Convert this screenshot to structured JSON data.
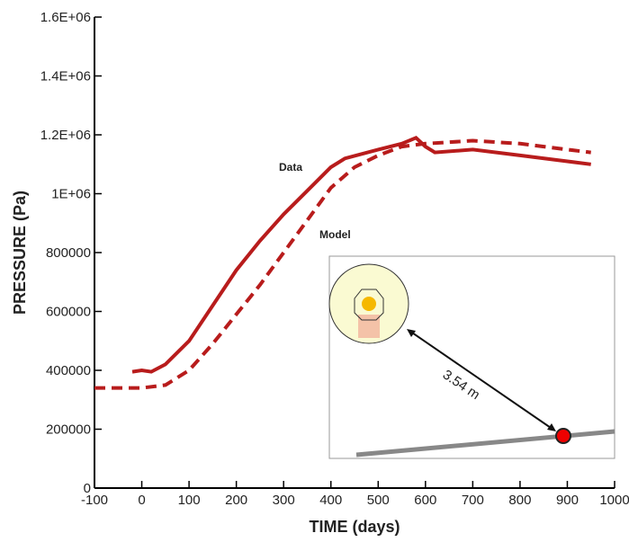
{
  "chart_data": {
    "type": "line",
    "xlabel": "TIME (days)",
    "ylabel": "PRESSURE (Pa)",
    "xlim": [
      -100,
      1000
    ],
    "xticks": [
      -100,
      0,
      100,
      200,
      300,
      400,
      500,
      600,
      700,
      800,
      900,
      1000
    ],
    "ylim": [
      0,
      1600000
    ],
    "yticks": [
      0,
      200000,
      400000,
      600000,
      800000,
      {
        "value": 1000000,
        "label": "1E+06"
      },
      {
        "value": 1200000,
        "label": "1.2E+06"
      },
      {
        "value": 1400000,
        "label": "1.4E+06"
      },
      {
        "value": 1600000,
        "label": "1.6E+06"
      }
    ],
    "series": [
      {
        "name": "Data",
        "color": "#b81c1c",
        "dash": false,
        "x": [
          -20,
          0,
          20,
          50,
          100,
          150,
          200,
          250,
          300,
          350,
          400,
          430,
          500,
          550,
          580,
          600,
          620,
          700,
          800,
          900,
          950
        ],
        "values": [
          395000,
          400000,
          395000,
          420000,
          500000,
          620000,
          740000,
          840000,
          930000,
          1010000,
          1090000,
          1120000,
          1150000,
          1170000,
          1190000,
          1160000,
          1140000,
          1150000,
          1130000,
          1110000,
          1100000
        ]
      },
      {
        "name": "Model",
        "color": "#b81c1c",
        "dash": true,
        "x": [
          -100,
          0,
          50,
          100,
          150,
          200,
          250,
          300,
          350,
          400,
          450,
          500,
          550,
          600,
          650,
          700,
          800,
          900,
          950
        ],
        "values": [
          340000,
          340000,
          350000,
          400000,
          490000,
          590000,
          690000,
          800000,
          910000,
          1020000,
          1090000,
          1130000,
          1160000,
          1170000,
          1175000,
          1180000,
          1170000,
          1150000,
          1140000
        ]
      }
    ],
    "annotations": [
      "3.54 m"
    ]
  }
}
